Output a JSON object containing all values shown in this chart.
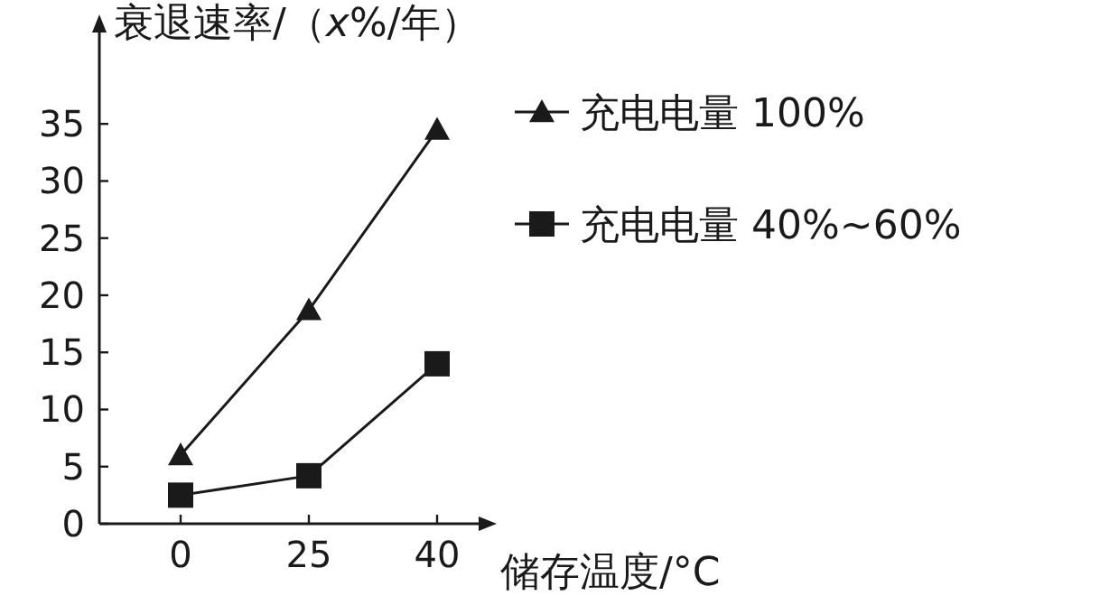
{
  "chart_data": {
    "type": "line",
    "ylabel": "衰退速率/（*x*%/年）",
    "xlabel": "储存温度/°C",
    "categories": [
      "0",
      "25",
      "40"
    ],
    "ylim": [
      0,
      43
    ],
    "yticks": [
      0,
      5,
      10,
      15,
      20,
      25,
      30,
      35
    ],
    "legend": "right",
    "line_style": "solid",
    "series": [
      {
        "name": "充电电量 100%",
        "color": "#1a1a1a",
        "marker": "triangle",
        "values": [
          6,
          18.7,
          34.5
        ]
      },
      {
        "name": "充电电量 40%~60%",
        "color": "#1a1a1a",
        "marker": "square",
        "values": [
          2.5,
          4.2,
          14
        ]
      }
    ]
  }
}
